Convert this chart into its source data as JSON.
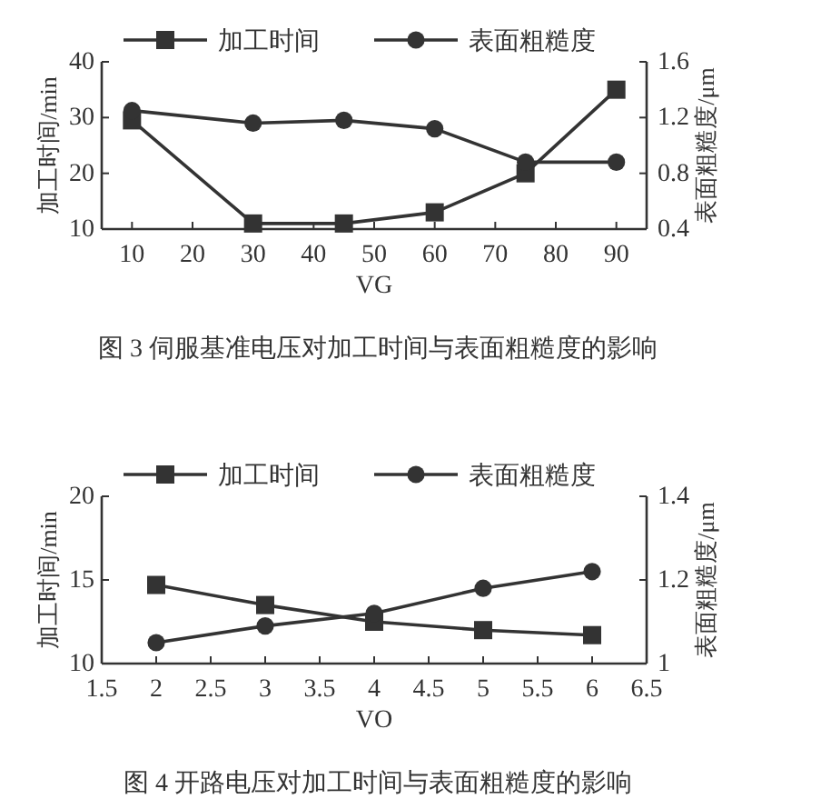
{
  "chart_data": [
    {
      "type": "line",
      "x": [
        10,
        30,
        45,
        60,
        75,
        90
      ],
      "series": [
        {
          "name": "加工时间",
          "color": "#333333",
          "marker": "square",
          "values": [
            29.5,
            11,
            11,
            13,
            20,
            35
          ]
        },
        {
          "name": "表面粗糙度",
          "color": "#333333",
          "marker": "circle",
          "axis": "y2",
          "values": [
            1.25,
            1.16,
            1.18,
            1.12,
            0.88,
            0.88
          ]
        }
      ],
      "xlabel": "VG",
      "ylabel": "加工时间/min",
      "y2label": "表面粗糙度/μm",
      "xlim": [
        5,
        95
      ],
      "xticks": [
        10,
        20,
        30,
        40,
        50,
        60,
        70,
        80,
        90
      ],
      "ylim": [
        10,
        40
      ],
      "yticks": [
        10,
        20,
        30,
        40
      ],
      "y2lim": [
        0.4,
        1.6
      ],
      "y2ticks": [
        0.4,
        0.8,
        1.2,
        1.6
      ],
      "legend": "top",
      "line_style": "solid",
      "annotations": [
        "图 3  伺服基准电压对加工时间与表面粗糙度的影响"
      ]
    },
    {
      "type": "line",
      "x": [
        2,
        3,
        4,
        5,
        6
      ],
      "series": [
        {
          "name": "加工时间",
          "color": "#333333",
          "marker": "square",
          "values": [
            14.7,
            13.5,
            12.5,
            12,
            11.7
          ]
        },
        {
          "name": "表面粗糙度",
          "color": "#333333",
          "marker": "circle",
          "axis": "y2",
          "values": [
            1.05,
            1.09,
            1.12,
            1.18,
            1.22
          ]
        }
      ],
      "xlabel": "VO",
      "ylabel": "加工时间/min",
      "y2label": "表面粗糙度/μm",
      "xlim": [
        1.5,
        6.5
      ],
      "xticks": [
        1.5,
        2,
        2.5,
        3,
        3.5,
        4,
        4.5,
        5,
        5.5,
        6,
        6.5
      ],
      "ylim": [
        10,
        20
      ],
      "yticks": [
        10,
        15,
        20
      ],
      "y2lim": [
        1,
        1.4
      ],
      "y2ticks": [
        1,
        1.2,
        1.4
      ],
      "legend": "top",
      "line_style": "solid",
      "annotations": [
        "图 4  开路电压对加工时间与表面粗糙度的影响"
      ]
    }
  ]
}
